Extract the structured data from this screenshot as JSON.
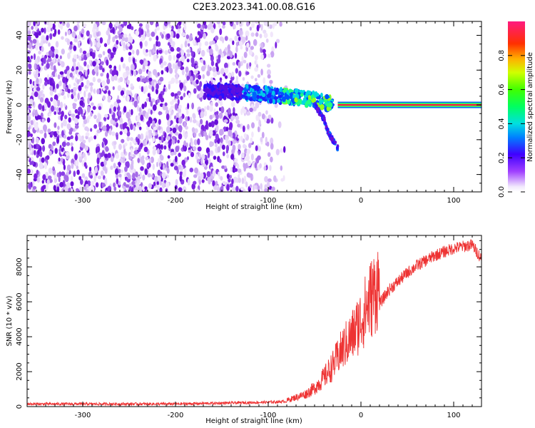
{
  "title": "C2E3.2023.341.00.08.G16",
  "chart_data": [
    {
      "type": "heatmap",
      "xlabel": "Height of straight line (km)",
      "ylabel": "Frequency (Hz)",
      "xlim": [
        -360,
        130
      ],
      "ylim": [
        -50,
        48
      ],
      "x_ticks": [
        -300,
        -200,
        -100,
        0,
        100
      ],
      "y_ticks": [
        -40,
        -20,
        0,
        20,
        40
      ],
      "colorbar": {
        "label": "Normalized spectral amplitude",
        "range": [
          0,
          1
        ],
        "ticks": [
          0.0,
          0.2,
          0.4,
          0.6,
          0.8
        ]
      },
      "features": {
        "noise_region_x": [
          -360,
          -80
        ],
        "signal_line_freq": 0,
        "signal_line_start_x": -25,
        "signal_line_amplitude": 0.85,
        "chirp_branch": [
          [
            -170,
            8
          ],
          [
            -120,
            7
          ],
          [
            -80,
            5
          ],
          [
            -50,
            3
          ],
          [
            -30,
            0
          ]
        ],
        "lower_branch": [
          [
            -50,
            0
          ],
          [
            -40,
            -8
          ],
          [
            -35,
            -16
          ],
          [
            -25,
            -25
          ]
        ]
      }
    },
    {
      "type": "line",
      "xlabel": "Height of straight line (km)",
      "ylabel": "SNR (10 * v/v)",
      "xlim": [
        -360,
        130
      ],
      "ylim": [
        0,
        9800
      ],
      "x_ticks": [
        -300,
        -200,
        -100,
        0,
        100
      ],
      "y_ticks": [
        0,
        2000,
        4000,
        6000,
        8000
      ],
      "color": "#ee3333",
      "series": [
        {
          "x": [
            -360,
            -200,
            -100,
            -80,
            -60,
            -50,
            -40,
            -30,
            -20,
            -10,
            0,
            10,
            20,
            30,
            40,
            50,
            60,
            70,
            80,
            90,
            100,
            110,
            120,
            130
          ],
          "values": [
            150,
            150,
            250,
            300,
            600,
            900,
            1400,
            2000,
            2800,
            3400,
            4200,
            5200,
            6000,
            6800,
            7300,
            7800,
            8200,
            8500,
            8800,
            9000,
            9200,
            9300,
            9400,
            8600
          ]
        }
      ]
    }
  ]
}
